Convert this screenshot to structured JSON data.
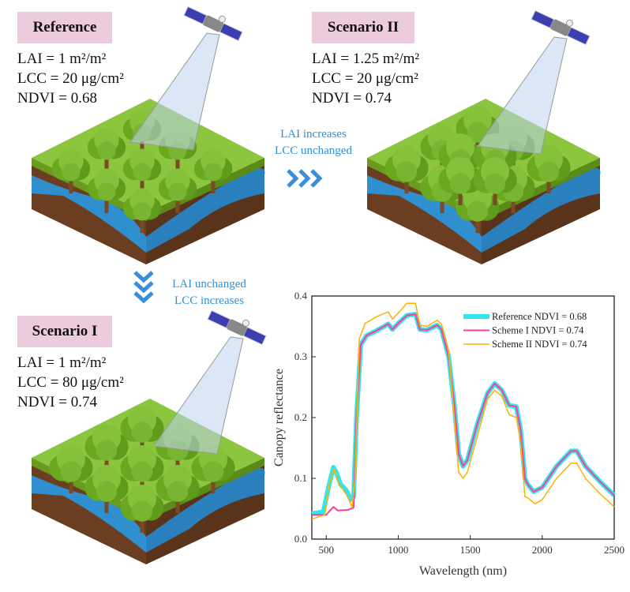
{
  "scenes": {
    "reference": {
      "title": "Reference",
      "lai": "LAI = 1 m²/m²",
      "lcc": "LCC = 20 μg/cm²",
      "ndvi": "NDVI = 0.68"
    },
    "scenario2": {
      "title": "Scenario  II",
      "lai": "LAI = 1.25 m²/m²",
      "lcc": "LCC = 20 μg/cm²",
      "ndvi": "NDVI = 0.74"
    },
    "scenario1": {
      "title": "Scenario  I",
      "lai": "LAI = 1 m²/m²",
      "lcc": "LCC = 80 μg/cm²",
      "ndvi": "NDVI = 0.74"
    }
  },
  "transitions": {
    "right": {
      "line1": "LAI increases",
      "line2": "LCC unchanged"
    },
    "down": {
      "line1": "LAI unchanged",
      "line2": "LCC increases"
    }
  },
  "colors": {
    "note": "#2f8fd8",
    "tag": "#ecccdc",
    "reference": "#33e6ee",
    "scheme1": "#ff3d9a",
    "scheme2": "#ffb000"
  },
  "chart_data": {
    "type": "line",
    "xlabel": "Wavelength (nm)",
    "ylabel": "Canopy reflectance",
    "xlim": [
      400,
      2500
    ],
    "ylim": [
      0,
      0.4
    ],
    "xticks": [
      "500",
      "1000",
      "1500",
      "2000",
      "2500"
    ],
    "yticks": [
      "0.0",
      "0.1",
      "0.2",
      "0.3",
      "0.4"
    ],
    "legend_position": "top-right",
    "series": [
      {
        "name": "Reference NDVI = 0.68",
        "color": "#33e6ee",
        "points": [
          [
            400,
            0.042
          ],
          [
            480,
            0.045
          ],
          [
            520,
            0.09
          ],
          [
            550,
            0.118
          ],
          [
            570,
            0.11
          ],
          [
            600,
            0.09
          ],
          [
            640,
            0.08
          ],
          [
            670,
            0.065
          ],
          [
            690,
            0.07
          ],
          [
            710,
            0.2
          ],
          [
            740,
            0.32
          ],
          [
            780,
            0.335
          ],
          [
            850,
            0.343
          ],
          [
            930,
            0.354
          ],
          [
            960,
            0.345
          ],
          [
            1000,
            0.355
          ],
          [
            1060,
            0.368
          ],
          [
            1120,
            0.37
          ],
          [
            1150,
            0.345
          ],
          [
            1200,
            0.344
          ],
          [
            1270,
            0.352
          ],
          [
            1300,
            0.345
          ],
          [
            1350,
            0.3
          ],
          [
            1390,
            0.22
          ],
          [
            1420,
            0.14
          ],
          [
            1450,
            0.12
          ],
          [
            1480,
            0.13
          ],
          [
            1550,
            0.19
          ],
          [
            1620,
            0.24
          ],
          [
            1670,
            0.256
          ],
          [
            1720,
            0.245
          ],
          [
            1770,
            0.22
          ],
          [
            1820,
            0.218
          ],
          [
            1850,
            0.18
          ],
          [
            1880,
            0.1
          ],
          [
            1900,
            0.09
          ],
          [
            1940,
            0.078
          ],
          [
            2000,
            0.085
          ],
          [
            2100,
            0.12
          ],
          [
            2200,
            0.145
          ],
          [
            2240,
            0.145
          ],
          [
            2300,
            0.12
          ],
          [
            2400,
            0.095
          ],
          [
            2500,
            0.072
          ]
        ]
      },
      {
        "name": "Scheme I  NDVI = 0.74",
        "color": "#ff3d9a",
        "points": [
          [
            400,
            0.04
          ],
          [
            500,
            0.04
          ],
          [
            550,
            0.053
          ],
          [
            580,
            0.047
          ],
          [
            650,
            0.048
          ],
          [
            690,
            0.052
          ],
          [
            710,
            0.2
          ],
          [
            740,
            0.32
          ],
          [
            780,
            0.335
          ],
          [
            850,
            0.343
          ],
          [
            930,
            0.354
          ],
          [
            960,
            0.345
          ],
          [
            1000,
            0.355
          ],
          [
            1060,
            0.368
          ],
          [
            1120,
            0.37
          ],
          [
            1150,
            0.345
          ],
          [
            1200,
            0.344
          ],
          [
            1270,
            0.352
          ],
          [
            1300,
            0.345
          ],
          [
            1350,
            0.3
          ],
          [
            1390,
            0.22
          ],
          [
            1420,
            0.14
          ],
          [
            1450,
            0.12
          ],
          [
            1480,
            0.13
          ],
          [
            1550,
            0.19
          ],
          [
            1620,
            0.24
          ],
          [
            1670,
            0.256
          ],
          [
            1720,
            0.245
          ],
          [
            1770,
            0.22
          ],
          [
            1820,
            0.218
          ],
          [
            1850,
            0.18
          ],
          [
            1880,
            0.1
          ],
          [
            1900,
            0.09
          ],
          [
            1940,
            0.078
          ],
          [
            2000,
            0.085
          ],
          [
            2100,
            0.12
          ],
          [
            2200,
            0.145
          ],
          [
            2240,
            0.145
          ],
          [
            2300,
            0.12
          ],
          [
            2400,
            0.095
          ],
          [
            2500,
            0.072
          ]
        ]
      },
      {
        "name": "Scheme II NDVI = 0.74",
        "color": "#ffb000",
        "points": [
          [
            400,
            0.033
          ],
          [
            490,
            0.04
          ],
          [
            520,
            0.09
          ],
          [
            555,
            0.116
          ],
          [
            580,
            0.095
          ],
          [
            620,
            0.08
          ],
          [
            650,
            0.07
          ],
          [
            680,
            0.052
          ],
          [
            700,
            0.1
          ],
          [
            730,
            0.33
          ],
          [
            770,
            0.355
          ],
          [
            850,
            0.366
          ],
          [
            930,
            0.374
          ],
          [
            960,
            0.362
          ],
          [
            1000,
            0.372
          ],
          [
            1060,
            0.388
          ],
          [
            1120,
            0.388
          ],
          [
            1150,
            0.352
          ],
          [
            1200,
            0.35
          ],
          [
            1270,
            0.36
          ],
          [
            1300,
            0.354
          ],
          [
            1350,
            0.31
          ],
          [
            1390,
            0.2
          ],
          [
            1420,
            0.11
          ],
          [
            1450,
            0.1
          ],
          [
            1480,
            0.11
          ],
          [
            1550,
            0.17
          ],
          [
            1620,
            0.23
          ],
          [
            1670,
            0.245
          ],
          [
            1720,
            0.235
          ],
          [
            1770,
            0.205
          ],
          [
            1820,
            0.2
          ],
          [
            1850,
            0.16
          ],
          [
            1880,
            0.07
          ],
          [
            1900,
            0.068
          ],
          [
            1950,
            0.058
          ],
          [
            2000,
            0.065
          ],
          [
            2100,
            0.1
          ],
          [
            2200,
            0.125
          ],
          [
            2240,
            0.125
          ],
          [
            2300,
            0.1
          ],
          [
            2400,
            0.075
          ],
          [
            2500,
            0.053
          ]
        ]
      }
    ]
  }
}
